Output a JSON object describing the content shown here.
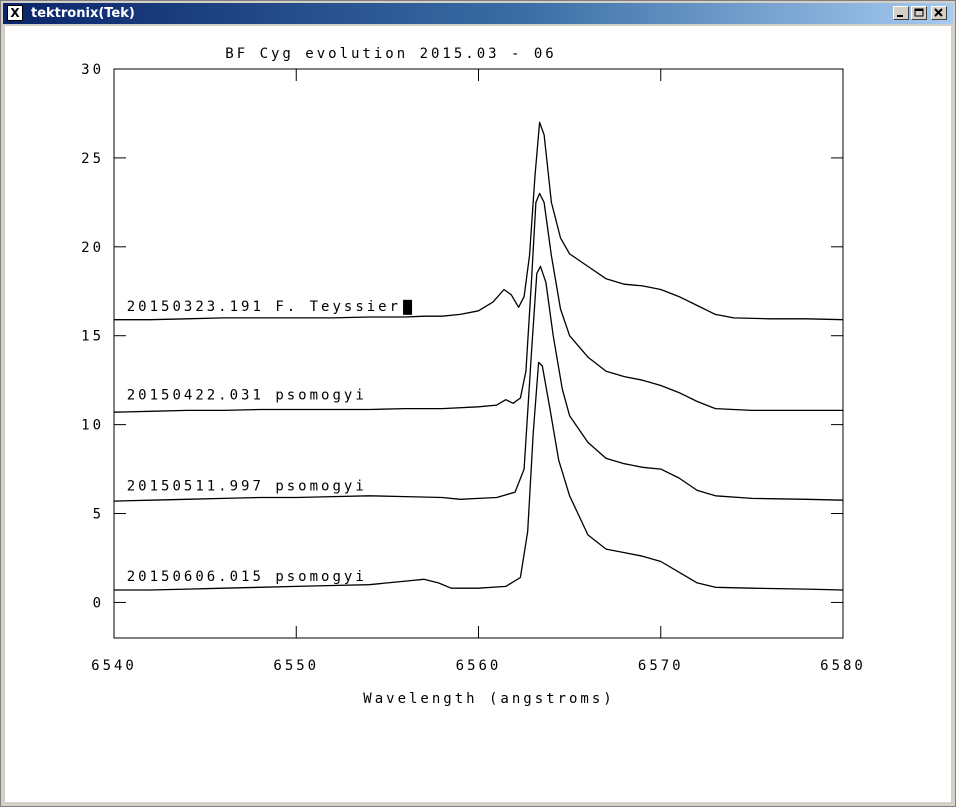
{
  "window": {
    "title": "tektronix(Tek)",
    "icon": "x-window-icon",
    "buttons": [
      "minimize-icon",
      "maximize-icon",
      "close-icon"
    ]
  },
  "chart_data": {
    "type": "line",
    "title": "BF Cyg evolution 2015.03 - 06",
    "xlabel": "Wavelength (angstroms)",
    "ylabel": "",
    "xlim": [
      6540,
      6580
    ],
    "ylim": [
      -2,
      30
    ],
    "xticks": [
      6540,
      6550,
      6560,
      6570,
      6580
    ],
    "yticks": [
      0,
      5,
      10,
      15,
      20,
      25,
      30
    ],
    "grid": false,
    "line_color": "#000000",
    "series": [
      {
        "name": "20150323.191 F. Teyssier",
        "label_at": [
          6540.7,
          16.4
        ],
        "points": [
          [
            6540,
            15.9
          ],
          [
            6542,
            15.9
          ],
          [
            6544,
            15.95
          ],
          [
            6546,
            16.0
          ],
          [
            6548,
            16.0
          ],
          [
            6550,
            16.0
          ],
          [
            6552,
            16.0
          ],
          [
            6554,
            16.05
          ],
          [
            6556,
            16.05
          ],
          [
            6557,
            16.1
          ],
          [
            6558,
            16.1
          ],
          [
            6559,
            16.2
          ],
          [
            6560,
            16.4
          ],
          [
            6560.8,
            16.9
          ],
          [
            6561.4,
            17.6
          ],
          [
            6561.8,
            17.3
          ],
          [
            6562.2,
            16.6
          ],
          [
            6562.5,
            17.2
          ],
          [
            6562.8,
            19.5
          ],
          [
            6563.1,
            24.0
          ],
          [
            6563.35,
            27.0
          ],
          [
            6563.6,
            26.3
          ],
          [
            6564.0,
            22.5
          ],
          [
            6564.5,
            20.5
          ],
          [
            6565.0,
            19.6
          ],
          [
            6566,
            18.9
          ],
          [
            6567,
            18.2
          ],
          [
            6568,
            17.9
          ],
          [
            6569,
            17.8
          ],
          [
            6570,
            17.6
          ],
          [
            6571,
            17.2
          ],
          [
            6572,
            16.7
          ],
          [
            6573,
            16.2
          ],
          [
            6574,
            16.0
          ],
          [
            6576,
            15.95
          ],
          [
            6578,
            15.95
          ],
          [
            6580,
            15.9
          ]
        ]
      },
      {
        "name": "20150422.031 psomogyi",
        "label_at": [
          6540.7,
          11.4
        ],
        "points": [
          [
            6540,
            10.7
          ],
          [
            6542,
            10.75
          ],
          [
            6544,
            10.8
          ],
          [
            6546,
            10.8
          ],
          [
            6548,
            10.85
          ],
          [
            6550,
            10.85
          ],
          [
            6552,
            10.85
          ],
          [
            6554,
            10.85
          ],
          [
            6556,
            10.9
          ],
          [
            6558,
            10.9
          ],
          [
            6560,
            11.0
          ],
          [
            6561,
            11.1
          ],
          [
            6561.5,
            11.4
          ],
          [
            6561.9,
            11.2
          ],
          [
            6562.3,
            11.5
          ],
          [
            6562.6,
            13.0
          ],
          [
            6562.9,
            18.0
          ],
          [
            6563.15,
            22.5
          ],
          [
            6563.35,
            23.0
          ],
          [
            6563.6,
            22.5
          ],
          [
            6564.0,
            19.5
          ],
          [
            6564.5,
            16.5
          ],
          [
            6565.0,
            15.0
          ],
          [
            6566,
            13.8
          ],
          [
            6567,
            13.0
          ],
          [
            6568,
            12.7
          ],
          [
            6569,
            12.5
          ],
          [
            6570,
            12.2
          ],
          [
            6571,
            11.8
          ],
          [
            6572,
            11.3
          ],
          [
            6573,
            10.9
          ],
          [
            6575,
            10.8
          ],
          [
            6578,
            10.8
          ],
          [
            6580,
            10.8
          ]
        ]
      },
      {
        "name": "20150511.997 psomogyi",
        "label_at": [
          6540.7,
          6.3
        ],
        "points": [
          [
            6540,
            5.7
          ],
          [
            6542,
            5.75
          ],
          [
            6544,
            5.8
          ],
          [
            6546,
            5.85
          ],
          [
            6548,
            5.9
          ],
          [
            6550,
            5.9
          ],
          [
            6552,
            5.95
          ],
          [
            6554,
            6.0
          ],
          [
            6556,
            5.95
          ],
          [
            6558,
            5.9
          ],
          [
            6559,
            5.8
          ],
          [
            6560,
            5.85
          ],
          [
            6561,
            5.9
          ],
          [
            6562,
            6.2
          ],
          [
            6562.5,
            7.5
          ],
          [
            6562.9,
            14.0
          ],
          [
            6563.2,
            18.5
          ],
          [
            6563.4,
            18.9
          ],
          [
            6563.7,
            18.0
          ],
          [
            6564.1,
            15.0
          ],
          [
            6564.6,
            12.0
          ],
          [
            6565.0,
            10.5
          ],
          [
            6566,
            9.0
          ],
          [
            6567,
            8.1
          ],
          [
            6568,
            7.8
          ],
          [
            6569,
            7.6
          ],
          [
            6570,
            7.5
          ],
          [
            6571,
            7.0
          ],
          [
            6572,
            6.3
          ],
          [
            6573,
            6.0
          ],
          [
            6575,
            5.85
          ],
          [
            6578,
            5.8
          ],
          [
            6580,
            5.75
          ]
        ]
      },
      {
        "name": "20150606.015 psomogyi",
        "label_at": [
          6540.7,
          1.2
        ],
        "points": [
          [
            6540,
            0.7
          ],
          [
            6542,
            0.7
          ],
          [
            6544,
            0.75
          ],
          [
            6546,
            0.8
          ],
          [
            6548,
            0.85
          ],
          [
            6550,
            0.9
          ],
          [
            6552,
            0.95
          ],
          [
            6554,
            1.0
          ],
          [
            6555,
            1.1
          ],
          [
            6556,
            1.2
          ],
          [
            6557,
            1.3
          ],
          [
            6557.8,
            1.1
          ],
          [
            6558.5,
            0.8
          ],
          [
            6560,
            0.8
          ],
          [
            6561.5,
            0.9
          ],
          [
            6562.3,
            1.4
          ],
          [
            6562.7,
            4.0
          ],
          [
            6563.0,
            9.5
          ],
          [
            6563.3,
            13.5
          ],
          [
            6563.5,
            13.3
          ],
          [
            6563.9,
            11.0
          ],
          [
            6564.4,
            8.0
          ],
          [
            6565.0,
            6.0
          ],
          [
            6566,
            3.8
          ],
          [
            6567,
            3.0
          ],
          [
            6568,
            2.8
          ],
          [
            6569,
            2.6
          ],
          [
            6570,
            2.3
          ],
          [
            6571,
            1.7
          ],
          [
            6572,
            1.1
          ],
          [
            6573,
            0.85
          ],
          [
            6575,
            0.8
          ],
          [
            6578,
            0.75
          ],
          [
            6580,
            0.7
          ]
        ]
      }
    ],
    "cursor": {
      "series_index": 0
    }
  }
}
